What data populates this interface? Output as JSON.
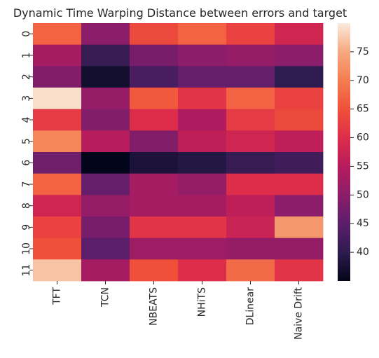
{
  "chart_data": {
    "type": "heatmap",
    "title": "Dynamic Time Warping Distance between errors and target",
    "xlabel": "",
    "ylabel": "",
    "x_categories": [
      "TFT",
      "TCN",
      "NBEATS",
      "NHiTS",
      "DLinear",
      "Naive Drift"
    ],
    "y_categories": [
      "0",
      "1",
      "2",
      "3",
      "4",
      "5",
      "6",
      "7",
      "8",
      "9",
      "10",
      "11"
    ],
    "values": [
      [
        67,
        50,
        64,
        67,
        63,
        58
      ],
      [
        53,
        41,
        48,
        50,
        51,
        50
      ],
      [
        49,
        37,
        43,
        46,
        46,
        40
      ],
      [
        79,
        51,
        66,
        61,
        67,
        63
      ],
      [
        62,
        49,
        60,
        54,
        62,
        64
      ],
      [
        71,
        55,
        49,
        56,
        58,
        56
      ],
      [
        47,
        35,
        38,
        39,
        41,
        42
      ],
      [
        67,
        46,
        53,
        51,
        60,
        60
      ],
      [
        58,
        51,
        53,
        53,
        56,
        50
      ],
      [
        63,
        48,
        61,
        61,
        57,
        73
      ],
      [
        65,
        45,
        52,
        52,
        51,
        51
      ],
      [
        77,
        53,
        65,
        60,
        68,
        61
      ]
    ],
    "colorbar": {
      "min": 35,
      "max": 80,
      "ticks": [
        "40",
        "45",
        "50",
        "55",
        "60",
        "65",
        "70",
        "75"
      ],
      "colormap": "rocket",
      "stops": [
        "#03051A",
        "#2E1B4F",
        "#5B1E6A",
        "#8C1D6A",
        "#B71C5C",
        "#DE2D4A",
        "#F0503A",
        "#F47D51",
        "#F6A87F",
        "#FAEBDD"
      ]
    },
    "grid": false,
    "legend": "colorbar-right"
  }
}
